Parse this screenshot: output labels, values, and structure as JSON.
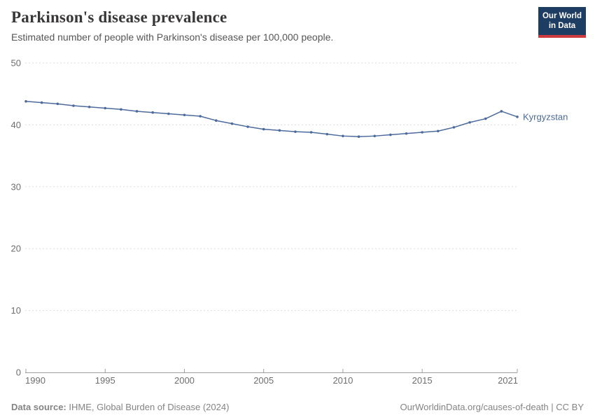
{
  "header": {
    "title": "Parkinson's disease prevalence",
    "subtitle": "Estimated number of people with Parkinson's disease per 100,000 people.",
    "logo": {
      "line1": "Our World",
      "line2": "in Data"
    }
  },
  "chart_data": {
    "type": "line",
    "title": "Parkinson's disease prevalence",
    "subtitle": "Estimated number of people with Parkinson's disease per 100,000 people.",
    "x": [
      1990,
      1991,
      1992,
      1993,
      1994,
      1995,
      1996,
      1997,
      1998,
      1999,
      2000,
      2001,
      2002,
      2003,
      2004,
      2005,
      2006,
      2007,
      2008,
      2009,
      2010,
      2011,
      2012,
      2013,
      2014,
      2015,
      2016,
      2017,
      2018,
      2019,
      2020,
      2021
    ],
    "series": [
      {
        "name": "Kyrgyzstan",
        "color": "#4C6A9C",
        "values": [
          43.8,
          43.6,
          43.4,
          43.1,
          42.9,
          42.7,
          42.5,
          42.2,
          42.0,
          41.8,
          41.6,
          41.4,
          40.7,
          40.2,
          39.7,
          39.3,
          39.1,
          38.9,
          38.8,
          38.5,
          38.2,
          38.1,
          38.2,
          38.4,
          38.6,
          38.8,
          39.0,
          39.6,
          40.4,
          41.0,
          42.2,
          41.3
        ]
      }
    ],
    "ylim": [
      0,
      50
    ],
    "yticks": [
      0,
      10,
      20,
      30,
      40,
      50
    ],
    "xticks": [
      1990,
      1995,
      2000,
      2005,
      2010,
      2015,
      2021
    ],
    "xlabel": "",
    "ylabel": "",
    "grid": "horizontal-dashed",
    "legend_position": "end-of-line-label"
  },
  "footer": {
    "source_label": "Data source:",
    "source_text": " IHME, Global Burden of Disease (2024)",
    "rights_text": "OurWorldinData.org/causes-of-death | CC BY"
  },
  "colors": {
    "line": "#4C6A9C",
    "grid": "#dddddd",
    "axis": "#9e9e9e",
    "tick_label": "#6e6e6e",
    "logo_bg": "#1d3d63",
    "logo_bar": "#cf3a3e",
    "title": "#383636",
    "subtitle": "#565656",
    "footer": "#848484"
  }
}
